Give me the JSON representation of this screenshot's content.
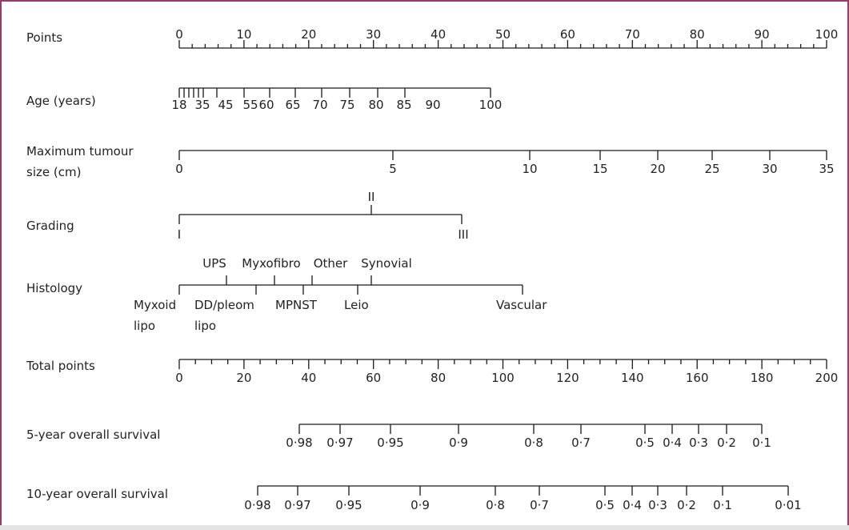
{
  "chart_data": {
    "type": "nomogram",
    "scales": [
      {
        "label_lines": [
          "Points"
        ],
        "ticks": [
          "0",
          "10",
          "20",
          "30",
          "40",
          "50",
          "60",
          "70",
          "80",
          "90",
          "100"
        ],
        "range": [
          0,
          100
        ],
        "minor_step": 2
      },
      {
        "label_lines": [
          "Age (years)"
        ],
        "ticks": [
          "18",
          "35",
          "45",
          "55",
          "60",
          "65",
          "70",
          "75",
          "80",
          "85",
          "90",
          "100"
        ]
      },
      {
        "label_lines": [
          "Maximum tumour",
          "size (cm)"
        ],
        "ticks": [
          "0",
          "5",
          "10",
          "15",
          "20",
          "25",
          "30",
          "35"
        ]
      },
      {
        "label_lines": [
          "Grading"
        ],
        "ticks": [
          "I",
          "II",
          "III"
        ]
      },
      {
        "label_lines": [
          "Histology"
        ],
        "ticks_above": [
          "UPS",
          "Myxofibro",
          "Other",
          "Synovial"
        ],
        "ticks_below": [
          "Myxoid lipo",
          "DD/pleom lipo",
          "MPNST",
          "Leio",
          "Vascular"
        ]
      },
      {
        "label_lines": [
          "Total points"
        ],
        "ticks": [
          "0",
          "20",
          "40",
          "60",
          "80",
          "100",
          "120",
          "140",
          "160",
          "180",
          "200"
        ],
        "range": [
          0,
          200
        ],
        "minor_step": 5
      },
      {
        "label_lines": [
          "5-year overall survival"
        ],
        "ticks": [
          "0·98",
          "0·97",
          "0·95",
          "0·9",
          "0·8",
          "0·7",
          "0·5",
          "0·4",
          "0·3",
          "0·2",
          "0·1"
        ]
      },
      {
        "label_lines": [
          "10-year overall survival"
        ],
        "ticks": [
          "0·98",
          "0·97",
          "0·95",
          "0·9",
          "0·8",
          "0·7",
          "0·5",
          "0·4",
          "0·3",
          "0·2",
          "0·1",
          "0·01"
        ]
      }
    ]
  }
}
